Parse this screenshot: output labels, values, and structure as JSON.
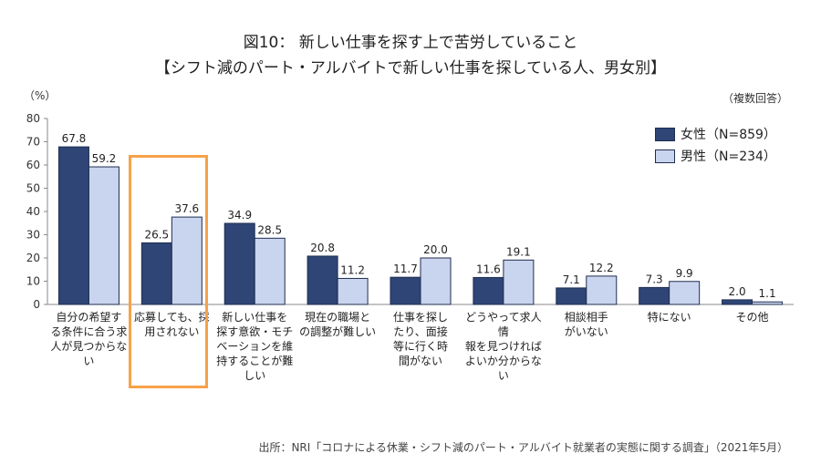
{
  "title_line1": "図10： 新しい仕事を探す上で苦労していること",
  "title_line2": "【シフト減のパート・アルバイトで新しい仕事を探している人、男女別】",
  "unit_label": "（%）",
  "answer_note": "（複数回答）",
  "source": "出所：NRI「コロナによる休業・シフト減のパート・アルバイト就業者の実態に関する調査」（2021年5月）",
  "colors": {
    "female": "#2e4576",
    "male": "#c9d4ee",
    "highlight": "#f7a14a",
    "grid": "#cccccc"
  },
  "chart_data": {
    "type": "bar",
    "categories": [
      "自分の希望す\nる条件に合う求\n人が見つからな\nい",
      "応募しても、採\n用されない",
      "新しい仕事を\n探す意欲・モチ\nベーションを維\n持することが難\nしい",
      "現在の職場と\nの調整が難しい",
      "仕事を探し\nたり、面接\n等に行く時\n間がない",
      "どうやって求人情\n報を見つければ\nよいか分からない",
      "相談相手\nがいない",
      "特にない",
      "その他"
    ],
    "series": [
      {
        "name": "女性（N=859）",
        "values": [
          67.8,
          26.5,
          34.9,
          20.8,
          11.7,
          11.6,
          7.1,
          7.3,
          2.0
        ]
      },
      {
        "name": "男性（N=234）",
        "values": [
          59.2,
          37.6,
          28.5,
          11.2,
          20.0,
          19.1,
          12.2,
          9.9,
          1.1
        ]
      }
    ],
    "value_labels": [
      [
        "67.8",
        "26.5",
        "34.9",
        "20.8",
        "11.7",
        "11.6",
        "7.1",
        "7.3",
        "2.0"
      ],
      [
        "59.2",
        "37.6",
        "28.5",
        "11.2",
        "20.0",
        "19.1",
        "12.2",
        "9.9",
        "1.1"
      ]
    ],
    "ylim": [
      0,
      80
    ],
    "yticks": [
      "0",
      "10",
      "20",
      "30",
      "40",
      "50",
      "60",
      "70",
      "80"
    ],
    "highlighted_category_index": 1,
    "legend_position": "top-right",
    "grid": false
  }
}
